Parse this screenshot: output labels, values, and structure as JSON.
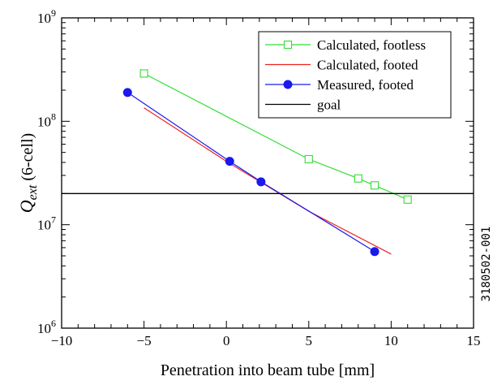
{
  "chart_data": {
    "type": "line",
    "xlabel": "Penetration into beam tube [mm]",
    "ylabel": {
      "main": "Q",
      "sub": "ext",
      "rest": " (6-cell)"
    },
    "xlim": [
      -10,
      15
    ],
    "ylim": [
      1000000,
      1000000000
    ],
    "yscale": "log",
    "xticks": [
      -10,
      -5,
      0,
      5,
      10,
      15
    ],
    "xtick_labels": [
      "−10",
      "−5",
      "0",
      "5",
      "10",
      "15"
    ],
    "yticks": [
      {
        "value": 1000000,
        "base": "10",
        "exp": "6"
      },
      {
        "value": 10000000,
        "base": "10",
        "exp": "7"
      },
      {
        "value": 100000000,
        "base": "10",
        "exp": "8"
      },
      {
        "value": 1000000000,
        "base": "10",
        "exp": "9"
      }
    ],
    "grid": false,
    "legend_position": "top-right",
    "series": [
      {
        "name": "Calculated, footless",
        "color": "#33dd33",
        "marker": "open-square",
        "line": true,
        "x": [
          -5,
          5,
          8,
          9,
          11
        ],
        "y": [
          290000000,
          43000000,
          28000000,
          24000000,
          17500000
        ]
      },
      {
        "name": "Calculated, footed",
        "color": "#ee2222",
        "marker": "none",
        "line": true,
        "x": [
          -5,
          0,
          5,
          10
        ],
        "y": [
          135000000,
          41000000,
          13500000,
          5200000
        ]
      },
      {
        "name": "Measured, footed",
        "color": "#1a1aee",
        "marker": "filled-circle",
        "line": true,
        "x": [
          -6,
          0.2,
          2.1,
          9
        ],
        "y": [
          190000000,
          41000000,
          26000000,
          5500000
        ]
      },
      {
        "name": "goal",
        "color": "#000000",
        "marker": "none",
        "line": true,
        "x": [
          -10,
          15
        ],
        "y": [
          20000000,
          20000000
        ]
      }
    ],
    "side_label": "3180502-001"
  }
}
